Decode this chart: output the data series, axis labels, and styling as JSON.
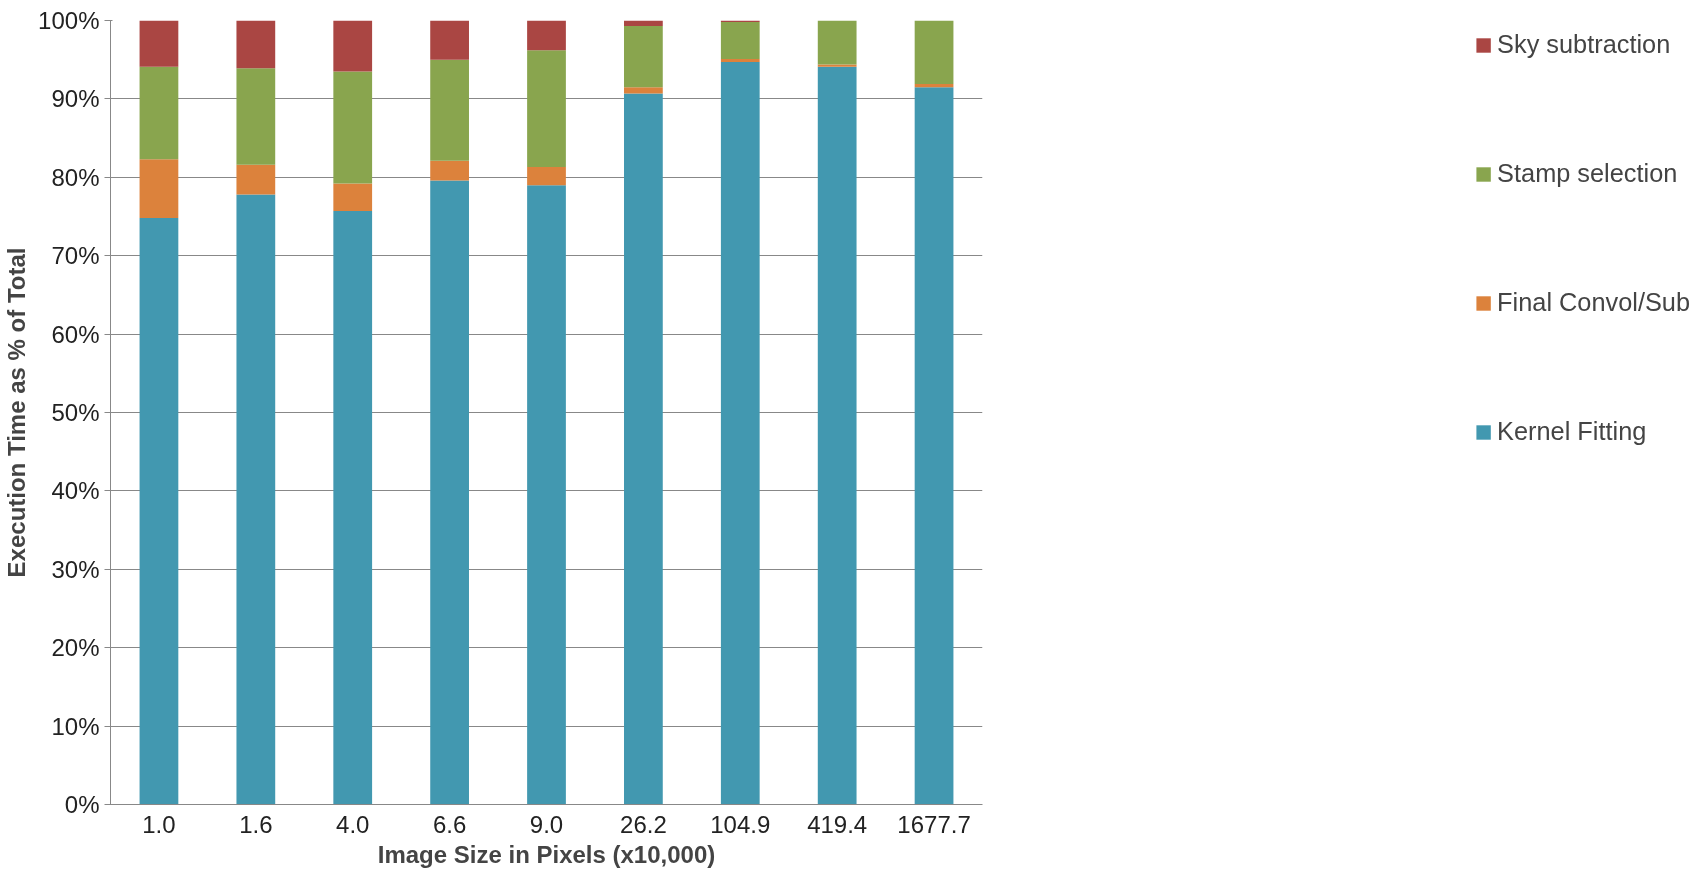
{
  "chart_data": {
    "type": "bar",
    "stacked": true,
    "xlabel": "Image Size in Pixels (x10,000)",
    "ylabel": "Execution Time as % of Total",
    "categories": [
      "1.0",
      "1.6",
      "4.0",
      "6.6",
      "9.0",
      "26.2",
      "104.9",
      "419.4",
      "1677.7"
    ],
    "series": [
      {
        "name": "Kernel Fitting",
        "color": "#4298b0",
        "values": [
          74.8,
          77.8,
          75.7,
          79.6,
          79.0,
          90.7,
          94.7,
          94.1,
          91.5
        ]
      },
      {
        "name": "Final Convol/Sub",
        "color": "#dc823c",
        "values": [
          7.5,
          3.8,
          3.5,
          2.5,
          2.3,
          0.8,
          0.4,
          0.3,
          0.4
        ]
      },
      {
        "name": "Stamp selection",
        "color": "#89a54e",
        "values": [
          11.8,
          12.3,
          14.3,
          12.9,
          14.9,
          7.8,
          4.7,
          5.6,
          8.1
        ]
      },
      {
        "name": "Sky subtraction",
        "color": "#aa4643",
        "values": [
          5.9,
          6.1,
          6.5,
          5.0,
          3.8,
          0.7,
          0.2,
          0,
          0
        ]
      }
    ],
    "ylim": [
      0,
      100
    ],
    "yticks": [
      {
        "value": 0,
        "label": "0%"
      },
      {
        "value": 10,
        "label": "10%"
      },
      {
        "value": 20,
        "label": "20%"
      },
      {
        "value": 30,
        "label": "30%"
      },
      {
        "value": 40,
        "label": "40%"
      },
      {
        "value": 50,
        "label": "50%"
      },
      {
        "value": 60,
        "label": "60%"
      },
      {
        "value": 70,
        "label": "70%"
      },
      {
        "value": 80,
        "label": "80%"
      },
      {
        "value": 90,
        "label": "90%"
      },
      {
        "value": 100,
        "label": "100%"
      }
    ],
    "grid": "y",
    "legend": "right"
  }
}
